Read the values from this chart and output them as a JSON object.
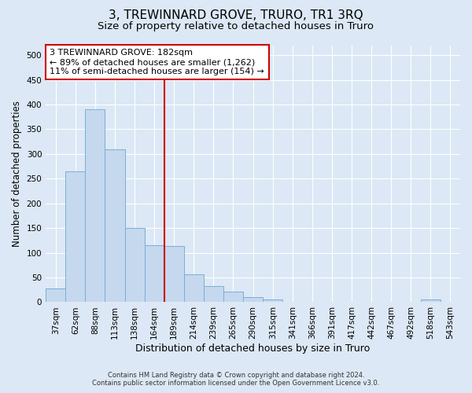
{
  "title": "3, TREWINNARD GROVE, TRURO, TR1 3RQ",
  "subtitle": "Size of property relative to detached houses in Truro",
  "xlabel": "Distribution of detached houses by size in Truro",
  "ylabel": "Number of detached properties",
  "footer_line1": "Contains HM Land Registry data © Crown copyright and database right 2024.",
  "footer_line2": "Contains public sector information licensed under the Open Government Licence v3.0.",
  "categories": [
    "37sqm",
    "62sqm",
    "88sqm",
    "113sqm",
    "138sqm",
    "164sqm",
    "189sqm",
    "214sqm",
    "239sqm",
    "265sqm",
    "290sqm",
    "315sqm",
    "341sqm",
    "366sqm",
    "391sqm",
    "417sqm",
    "442sqm",
    "467sqm",
    "492sqm",
    "518sqm",
    "543sqm"
  ],
  "values": [
    27,
    265,
    390,
    310,
    150,
    115,
    113,
    57,
    33,
    22,
    10,
    5,
    0,
    0,
    0,
    0,
    0,
    0,
    0,
    5,
    0
  ],
  "bar_color": "#c5d8ee",
  "bar_edge_color": "#7aafd4",
  "vline_x_index": 5.5,
  "annotation_text": "3 TREWINNARD GROVE: 182sqm\n← 89% of detached houses are smaller (1,262)\n11% of semi-detached houses are larger (154) →",
  "annotation_box_color": "#ffffff",
  "annotation_box_edge_color": "#cc0000",
  "vline_color": "#cc0000",
  "ylim": [
    0,
    520
  ],
  "yticks": [
    0,
    50,
    100,
    150,
    200,
    250,
    300,
    350,
    400,
    450,
    500
  ],
  "bg_color": "#dce8f5",
  "plot_bg_color": "#dce8f5",
  "title_fontsize": 11,
  "subtitle_fontsize": 9.5,
  "tick_fontsize": 7.5,
  "ylabel_fontsize": 8.5,
  "xlabel_fontsize": 9,
  "annotation_fontsize": 8
}
